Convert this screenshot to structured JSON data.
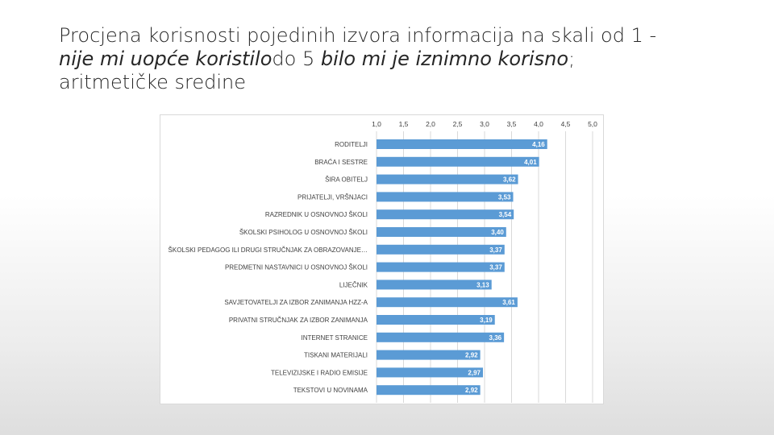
{
  "title": {
    "line1": "Procjena korisnosti pojedinih izvora informacija na skali od 1 -",
    "italic1": "nije mi uopće koristilo",
    "middle": "do 5 ",
    "italic2": "bilo mi je iznimno korisno",
    "end": ";",
    "line3": "aritmetičke sredine"
  },
  "chart_data": {
    "type": "bar",
    "orientation": "horizontal",
    "xlim": [
      1.0,
      5.0
    ],
    "ticks": [
      "1,0",
      "1,5",
      "2,0",
      "2,5",
      "3,0",
      "3,5",
      "4,0",
      "4,5",
      "5,0"
    ],
    "tick_values": [
      1.0,
      1.5,
      2.0,
      2.5,
      3.0,
      3.5,
      4.0,
      4.5,
      5.0
    ],
    "grid": "vertical",
    "categories": [
      "RODITELJI",
      "BRAĆA I SESTRE",
      "ŠIRA OBITELJ",
      "PRIJATELJI, VRŠNJACI",
      "RAZREDNIK U OSNOVNOJ ŠKOLI",
      "ŠKOLSKI PSIHOLOG U OSNOVNOJ ŠKOLI",
      "ŠKOLSKI PEDAGOG ILI DRUGI STRUČNJAK ZA OBRAZOVANJE…",
      "PREDMETNI NASTAVNICI U OSNOVNOJ ŠKOLI",
      "LIJEČNIK",
      "SAVJETOVATELJI ZA IZBOR ZANIMANJA HZZ-A",
      "PRIVATNI STRUČNJAK ZA IZBOR ZANIMANJA",
      "INTERNET STRANICE",
      "TISKANI MATERIJALI",
      "TELEVIZIJSKE I RADIO EMISIJE",
      "TEKSTOVI U NOVINAMA"
    ],
    "values": [
      4.16,
      4.01,
      3.62,
      3.53,
      3.54,
      3.4,
      3.37,
      3.37,
      3.13,
      3.61,
      3.19,
      3.36,
      2.92,
      2.97,
      2.92
    ],
    "value_labels": [
      "4,16",
      "4,01",
      "3,62",
      "3,53",
      "3,54",
      "3,40",
      "3,37",
      "3,37",
      "3,13",
      "3,61",
      "3,19",
      "3,36",
      "2,92",
      "2,97",
      "2,92"
    ],
    "bar_color": "#5b9bd5",
    "label_color": "#ffffff"
  }
}
